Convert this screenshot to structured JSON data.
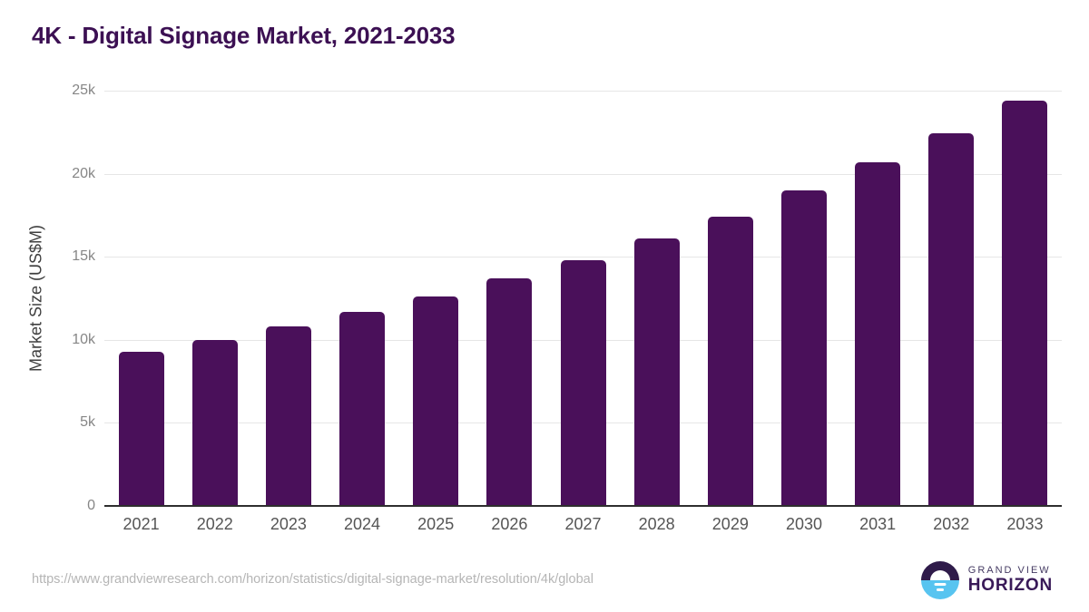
{
  "chart_data": {
    "type": "bar",
    "title": "4K - Digital Signage Market, 2021-2033",
    "categories": [
      "2021",
      "2022",
      "2023",
      "2024",
      "2025",
      "2026",
      "2027",
      "2028",
      "2029",
      "2030",
      "2031",
      "2032",
      "2033"
    ],
    "values": [
      9280,
      9990,
      10810,
      11690,
      12610,
      13700,
      14800,
      16100,
      17420,
      19000,
      20690,
      22440,
      24400
    ],
    "xlabel": "",
    "ylabel": "Market Size (US$M)",
    "ylim": [
      0,
      25000
    ],
    "yticks": [
      {
        "value": 25000,
        "label": "25k"
      },
      {
        "value": 20000,
        "label": "20k"
      },
      {
        "value": 15000,
        "label": "15k"
      },
      {
        "value": 10000,
        "label": "10k"
      },
      {
        "value": 5000,
        "label": "5k"
      },
      {
        "value": 0,
        "label": "0"
      }
    ],
    "grid": "horizontal",
    "legend": "none",
    "bar_color": "#4a105a"
  },
  "colors": {
    "title": "#3c1053",
    "bar": "#4a105a",
    "gridline": "#e6e6e6",
    "axis_line": "#2e2e2e",
    "y_tick": "#868686",
    "x_tick": "#555555",
    "source_text": "#b5b5b5",
    "logo_purple": "#2f1b4a",
    "logo_blue": "#58c4f0"
  },
  "footer": {
    "source_url": "https://www.grandviewresearch.com/horizon/statistics/digital-signage-market/resolution/4k/global",
    "logo_top": "GRAND VIEW",
    "logo_bottom": "HORIZON"
  }
}
